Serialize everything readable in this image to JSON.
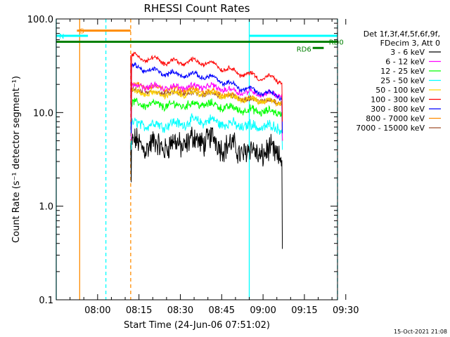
{
  "chart_data": {
    "type": "line",
    "title": "RHESSI Count Rates",
    "xlabel": "Start Time (24-Jun-06 07:51:02)",
    "ylabel": "Count Rate (s⁻¹ detector segment⁻¹)",
    "yscale": "log",
    "ylim": [
      0.1,
      100
    ],
    "xlim_minutes": [
      -6,
      96
    ],
    "x_ticks": [
      {
        "t": 9,
        "label": "08:00"
      },
      {
        "t": 24,
        "label": "08:15"
      },
      {
        "t": 39,
        "label": "08:30"
      },
      {
        "t": 54,
        "label": "08:45"
      },
      {
        "t": 69,
        "label": "09:00"
      },
      {
        "t": 84,
        "label": "09:15"
      },
      {
        "t": 99,
        "label": "09:30"
      }
    ],
    "y_ticks": [
      {
        "v": 0.1,
        "label": "0.1"
      },
      {
        "v": 1,
        "label": "1.0"
      },
      {
        "v": 10,
        "label": "10.0"
      },
      {
        "v": 100,
        "label": "100.0"
      }
    ],
    "data_interval_minutes": [
      21,
      76
    ],
    "series": [
      {
        "name": "3 - 6 keV",
        "color": "#000000",
        "start": 4.6,
        "end": 3.6,
        "noise": 0.11,
        "bump": 0.1,
        "min_dip": 1.8,
        "end_dip": 0.35
      },
      {
        "name": "6 - 12 keV",
        "color": "#ff00ff",
        "start": 19.5,
        "end": 15.5,
        "noise": 0.025,
        "bump": 0.04,
        "min_dip": 5.0,
        "end_dip": 5.0
      },
      {
        "name": "12 - 25 keV",
        "color": "#00ff00",
        "start": 12.5,
        "end": 10.0,
        "noise": 0.035,
        "bump": 0.04,
        "min_dip": 5.0,
        "end_dip": 5.0
      },
      {
        "name": "25 - 50 keV",
        "color": "#00ffff",
        "start": 7.5,
        "end": 7.0,
        "noise": 0.045,
        "bump": 0.05,
        "min_dip": 4.0,
        "end_dip": 4.0
      },
      {
        "name": "50 - 100 keV",
        "color": "#ffd400",
        "start": 16.5,
        "end": 13.0,
        "noise": 0.025,
        "bump": 0.04,
        "min_dip": 5.0,
        "end_dip": 5.0
      },
      {
        "name": "100 - 300 keV",
        "color": "#ff0000",
        "start": 40.0,
        "end": 22.0,
        "noise": 0.018,
        "bump": 0.06,
        "min_dip": 8.0,
        "end_dip": 8.0
      },
      {
        "name": "300 - 800 keV",
        "color": "#0000ff",
        "start": 31.0,
        "end": 15.0,
        "noise": 0.02,
        "bump": 0.05,
        "min_dip": 6.0,
        "end_dip": 6.0
      },
      {
        "name": "800 - 7000 keV",
        "color": "#ff8c00",
        "start": 20.0,
        "end": 12.5,
        "noise": 0.025,
        "bump": 0.03,
        "min_dip": 5.0,
        "end_dip": 5.0
      },
      {
        "name": "7000 - 15000 keV",
        "color": "#a0522d",
        "start": 17.0,
        "end": 13.0,
        "noise": 0.025,
        "bump": 0.03,
        "min_dip": 5.0,
        "end_dip": 5.0
      }
    ],
    "legend_header": [
      "Det 1f,3f,4f,5f,6f,9f,",
      "FDecim 3, Att 0"
    ],
    "flag_bars": [
      {
        "label": "S",
        "t0": 1.5,
        "t1": 21,
        "v": 75,
        "color": "#ff8c00"
      },
      {
        "label": "N",
        "t0": -6,
        "t1": 5.5,
        "v": 66,
        "color": "#00ffff"
      },
      {
        "label": "",
        "t0": 64,
        "t1": 96,
        "v": 66,
        "color": "#00ffff"
      },
      {
        "label": "",
        "t0": -6,
        "t1": 96,
        "v": 57,
        "color": "#008000"
      },
      {
        "label": "RD0",
        "t0": 91,
        "t1": 93,
        "v": 57,
        "color": "#008000"
      },
      {
        "label": "RD6",
        "t0": 87,
        "t1": 91,
        "v": 49,
        "color": "#008000"
      }
    ],
    "vertical_lines": [
      {
        "t": -6,
        "color": "#00ffff",
        "dashed": false
      },
      {
        "t": 2.5,
        "color": "#ff8c00",
        "dashed": false
      },
      {
        "t": 12,
        "color": "#00ffff",
        "dashed": true
      },
      {
        "t": 21,
        "color": "#ff8c00",
        "dashed": true
      },
      {
        "t": 64,
        "color": "#00ffff",
        "dashed": false
      },
      {
        "t": 96,
        "color": "#00ffff",
        "dashed": true
      }
    ],
    "footer": "15-Oct-2021 21:08"
  }
}
